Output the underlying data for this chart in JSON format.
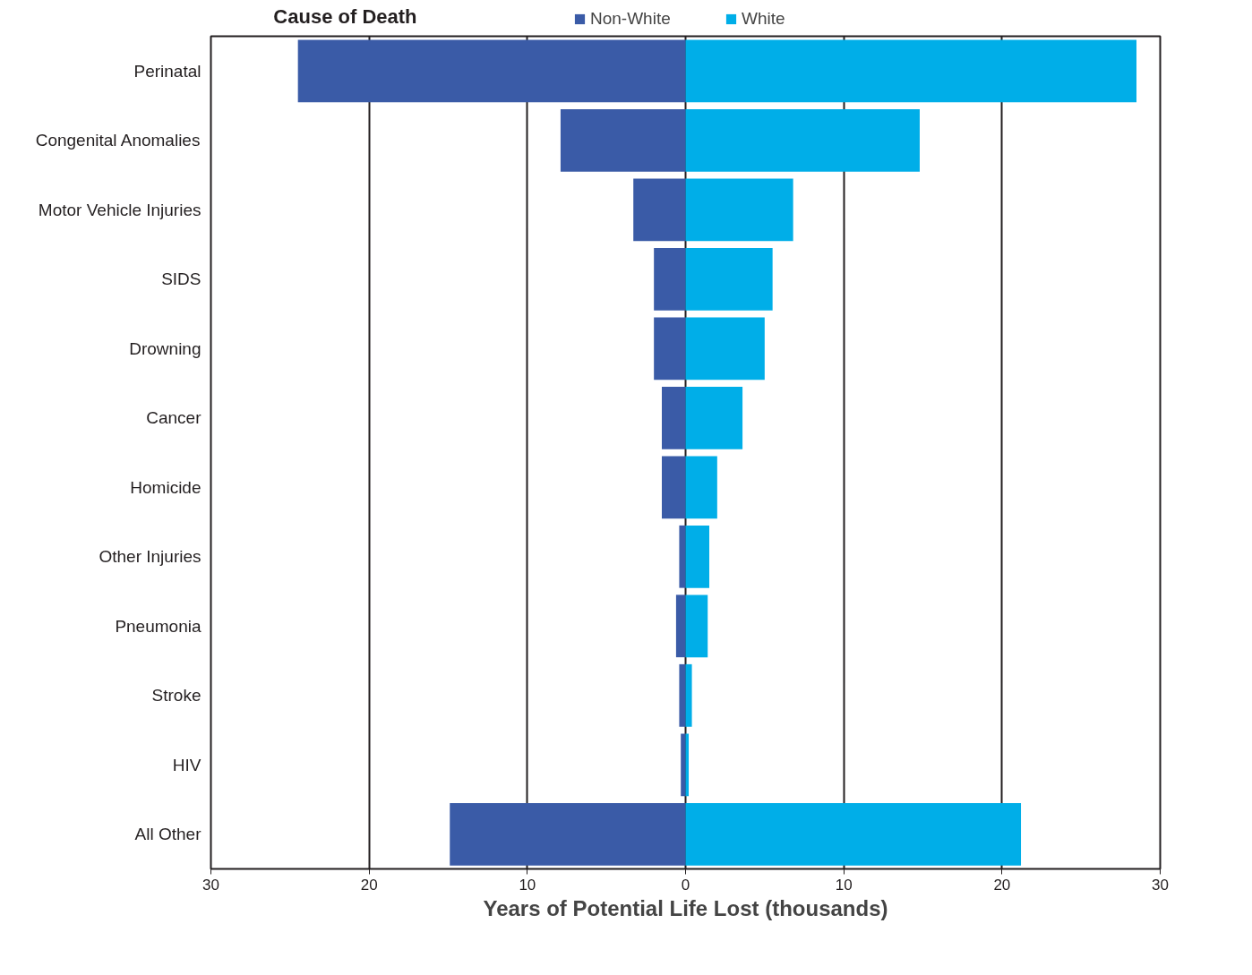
{
  "chart_data": {
    "type": "bar",
    "orientation": "horizontal",
    "ylabel": "Cause of Death",
    "xlabel": "Years of Potential Life Lost (thousands)",
    "categories": [
      "Perinatal",
      "Congenital Anomalies",
      "Motor Vehicle Injuries",
      "SIDS",
      "Drowning",
      "Cancer",
      "Homicide",
      "Other Injuries",
      "Pneumonia",
      "Stroke",
      "HIV",
      "All Other"
    ],
    "series": [
      {
        "name": "Non-White",
        "color": "#3a5ba7",
        "values": [
          -24.5,
          -7.9,
          -3.3,
          -2.0,
          -2.0,
          -1.5,
          -1.5,
          -0.4,
          -0.6,
          -0.4,
          -0.3,
          -14.9
        ]
      },
      {
        "name": "White",
        "color": "#00aee8",
        "values": [
          28.5,
          14.8,
          6.8,
          5.5,
          5.0,
          3.6,
          2.0,
          1.5,
          1.4,
          0.4,
          0.2,
          21.2
        ]
      }
    ],
    "xlim": [
      -30,
      30
    ],
    "xticks": [
      {
        "value": -30,
        "label": "30"
      },
      {
        "value": -20,
        "label": "20"
      },
      {
        "value": -10,
        "label": "10"
      },
      0,
      10,
      20,
      30
    ],
    "stacked": true,
    "grid": "x",
    "legend": "top"
  }
}
